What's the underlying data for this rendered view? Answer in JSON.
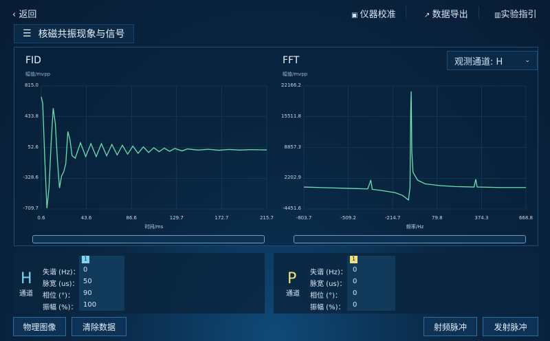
{
  "header": {
    "back_label": "返回",
    "calibrate_label": "仪器校准",
    "export_label": "数据导出",
    "guide_label": "实验指引"
  },
  "page_title": "核磁共振现象与信号",
  "channel_select": {
    "label": "观测通道:",
    "value": "H"
  },
  "colors": {
    "trace": "#6fe0b0",
    "h_accent": "#7fd6f0",
    "p_accent": "#f2e07a"
  },
  "chart_data": [
    {
      "type": "line",
      "title": "FID",
      "ylabel": "幅值/mvpp",
      "xlabel": "时间/ms",
      "xlim": [
        0.6,
        215.7
      ],
      "ylim": [
        -709.7,
        815.0
      ],
      "xticks": [
        "0.6",
        "43.6",
        "86.6",
        "129.7",
        "172.7",
        "215.7"
      ],
      "yticks": [
        "815.0",
        "433.8",
        "52.6",
        "-328.6",
        "-709.7"
      ],
      "grid": true,
      "points": [
        [
          0.6,
          680
        ],
        [
          2,
          600
        ],
        [
          4,
          -100
        ],
        [
          6,
          -700
        ],
        [
          8,
          -450
        ],
        [
          10,
          100
        ],
        [
          12,
          540
        ],
        [
          14,
          350
        ],
        [
          16,
          -100
        ],
        [
          18,
          -450
        ],
        [
          20,
          -300
        ],
        [
          22,
          -250
        ],
        [
          24,
          -150
        ],
        [
          26,
          250
        ],
        [
          28,
          150
        ],
        [
          30,
          -50
        ],
        [
          33,
          -80
        ],
        [
          38,
          110
        ],
        [
          43,
          -60
        ],
        [
          48,
          100
        ],
        [
          53,
          -60
        ],
        [
          58,
          100
        ],
        [
          63,
          -50
        ],
        [
          68,
          90
        ],
        [
          73,
          -40
        ],
        [
          78,
          80
        ],
        [
          83,
          -30
        ],
        [
          88,
          70
        ],
        [
          93,
          -20
        ],
        [
          98,
          60
        ],
        [
          103,
          -10
        ],
        [
          108,
          50
        ],
        [
          113,
          0
        ],
        [
          118,
          45
        ],
        [
          123,
          5
        ],
        [
          128,
          40
        ],
        [
          135,
          10
        ],
        [
          140,
          35
        ],
        [
          150,
          20
        ],
        [
          160,
          30
        ],
        [
          170,
          18
        ],
        [
          180,
          28
        ],
        [
          190,
          20
        ],
        [
          200,
          26
        ],
        [
          215.7,
          22
        ]
      ]
    },
    {
      "type": "line",
      "title": "FFT",
      "ylabel": "幅值/mvpp",
      "xlabel": "频率/Hz",
      "xlim": [
        -803.7,
        668.8
      ],
      "ylim": [
        -4451.6,
        22166.2
      ],
      "xticks": [
        "-803.7",
        "-509.2",
        "-214.7",
        "79.8",
        "374.3",
        "668.8"
      ],
      "yticks": [
        "22166.2",
        "15511.8",
        "8857.3",
        "2202.9",
        "-4451.6"
      ],
      "grid": true,
      "points": [
        [
          -803.7,
          300
        ],
        [
          -700,
          200
        ],
        [
          -600,
          100
        ],
        [
          -500,
          0
        ],
        [
          -380,
          -100
        ],
        [
          -360,
          1800
        ],
        [
          -350,
          -200
        ],
        [
          -300,
          -400
        ],
        [
          -200,
          -900
        ],
        [
          -150,
          -1500
        ],
        [
          -110,
          -2500
        ],
        [
          -100,
          200
        ],
        [
          -95,
          17000
        ],
        [
          -92,
          21000
        ],
        [
          -88,
          8000
        ],
        [
          -80,
          3500
        ],
        [
          -50,
          1800
        ],
        [
          0,
          1000
        ],
        [
          100,
          600
        ],
        [
          200,
          400
        ],
        [
          325,
          300
        ],
        [
          336,
          2000
        ],
        [
          345,
          300
        ],
        [
          500,
          200
        ],
        [
          668.8,
          200
        ]
      ]
    }
  ],
  "h_channel": {
    "symbol": "H",
    "label": "通道",
    "badge": "1",
    "params": [
      {
        "label": "失谐 (Hz)：",
        "value": "0"
      },
      {
        "label": "脉宽 (us)：",
        "value": "50"
      },
      {
        "label": "相位 (°)：",
        "value": "90"
      },
      {
        "label": "振幅 (%)：",
        "value": "100"
      }
    ]
  },
  "p_channel": {
    "symbol": "P",
    "label": "通道",
    "badge": "1",
    "params": [
      {
        "label": "失谐 (Hz)：",
        "value": "0"
      },
      {
        "label": "脉宽 (us)：",
        "value": "0"
      },
      {
        "label": "相位 (°)：",
        "value": "0"
      },
      {
        "label": "振幅 (%)：",
        "value": "0"
      }
    ]
  },
  "buttons": {
    "physics": "物理图像",
    "clear": "清除数据",
    "rf": "射频脉冲",
    "fire": "发射脉冲"
  }
}
